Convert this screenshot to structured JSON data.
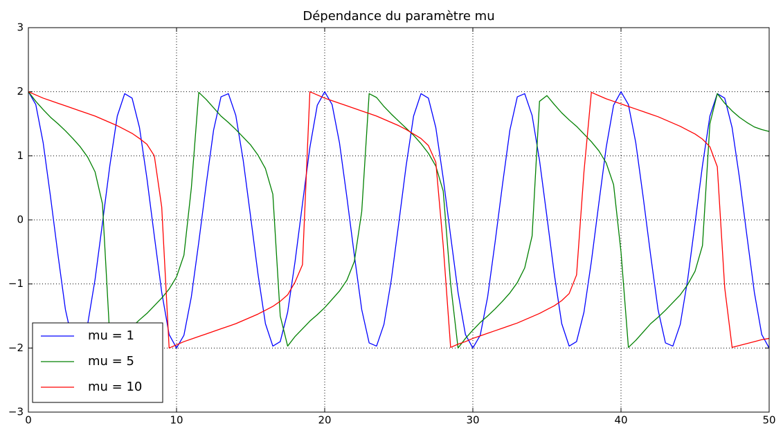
{
  "chart_data": {
    "type": "line",
    "title": "Dépendance du paramètre mu",
    "x": [
      0,
      0.5,
      1,
      1.5,
      2,
      2.5,
      3,
      3.5,
      4,
      4.5,
      5,
      5.5,
      6,
      6.5,
      7,
      7.5,
      8,
      8.5,
      9,
      9.5,
      10,
      10.5,
      11,
      11.5,
      12,
      12.5,
      13,
      13.5,
      14,
      14.5,
      15,
      15.5,
      16,
      16.5,
      17,
      17.5,
      18,
      18.5,
      19,
      19.5,
      20,
      20.5,
      21,
      21.5,
      22,
      22.5,
      23,
      23.5,
      24,
      24.5,
      25,
      25.5,
      26,
      26.5,
      27,
      27.5,
      28,
      28.5,
      29,
      29.5,
      30,
      30.5,
      31,
      31.5,
      32,
      32.5,
      33,
      33.5,
      34,
      34.5,
      35,
      35.5,
      36,
      36.5,
      37,
      37.5,
      38,
      38.5,
      39,
      39.5,
      40,
      40.5,
      41,
      41.5,
      42,
      42.5,
      43,
      43.5,
      44,
      44.5,
      45,
      45.5,
      46,
      46.5,
      47,
      47.5,
      48,
      48.5,
      49,
      49.5,
      50
    ],
    "series": [
      {
        "name": "mu = 1",
        "color": "#0000ff",
        "values": [
          2.0,
          1.8,
          1.2,
          0.35,
          -0.55,
          -1.4,
          -1.92,
          -1.97,
          -1.63,
          -0.93,
          -0.05,
          0.85,
          1.62,
          1.97,
          1.9,
          1.44,
          0.65,
          -0.25,
          -1.13,
          -1.79,
          -2.0,
          -1.8,
          -1.2,
          -0.35,
          0.55,
          1.4,
          1.92,
          1.97,
          1.63,
          0.93,
          0.05,
          -0.85,
          -1.62,
          -1.97,
          -1.9,
          -1.44,
          -0.65,
          0.25,
          1.13,
          1.79,
          2.0,
          1.8,
          1.2,
          0.35,
          -0.55,
          -1.4,
          -1.92,
          -1.97,
          -1.63,
          -0.93,
          -0.05,
          0.85,
          1.62,
          1.97,
          1.9,
          1.44,
          0.65,
          -0.25,
          -1.13,
          -1.79,
          -2.0,
          -1.8,
          -1.2,
          -0.35,
          0.55,
          1.4,
          1.92,
          1.97,
          1.63,
          0.93,
          0.05,
          -0.85,
          -1.62,
          -1.97,
          -1.9,
          -1.44,
          -0.65,
          0.25,
          1.13,
          1.79,
          2.0,
          1.8,
          1.2,
          0.35,
          -0.55,
          -1.4,
          -1.92,
          -1.97,
          -1.63,
          -0.93,
          -0.05,
          0.85,
          1.62,
          1.97,
          1.9,
          1.44,
          0.65,
          -0.25,
          -1.13,
          -1.79,
          -2.0
        ]
      },
      {
        "name": "mu = 5",
        "color": "#008000",
        "values": [
          2.0,
          1.85,
          1.72,
          1.6,
          1.5,
          1.39,
          1.27,
          1.14,
          0.98,
          0.75,
          0.25,
          -1.85,
          -1.94,
          -1.8,
          -1.67,
          -1.56,
          -1.46,
          -1.34,
          -1.22,
          -1.08,
          -0.89,
          -0.55,
          0.5,
          1.99,
          1.88,
          1.75,
          1.62,
          1.52,
          1.41,
          1.29,
          1.17,
          1.01,
          0.8,
          0.4,
          -1.5,
          -1.97,
          -1.82,
          -1.7,
          -1.58,
          -1.48,
          -1.37,
          -1.24,
          -1.11,
          -0.94,
          -0.65,
          0.13,
          1.97,
          1.91,
          1.77,
          1.65,
          1.54,
          1.43,
          1.32,
          1.19,
          1.04,
          0.84,
          0.45,
          -1.0,
          -2.0,
          -1.85,
          -1.72,
          -1.6,
          -1.5,
          -1.39,
          -1.27,
          -1.14,
          -0.98,
          -0.75,
          -0.25,
          1.85,
          1.94,
          1.8,
          1.67,
          1.56,
          1.46,
          1.34,
          1.22,
          1.08,
          0.89,
          0.55,
          -0.5,
          -1.99,
          -1.88,
          -1.75,
          -1.62,
          -1.52,
          -1.41,
          -1.29,
          -1.17,
          -1.01,
          -0.8,
          -0.4,
          1.5,
          1.97,
          1.82,
          1.7,
          1.6,
          1.52,
          1.45,
          1.41,
          1.38
        ]
      },
      {
        "name": "mu = 10",
        "color": "#ff0000",
        "values": [
          2.0,
          1.95,
          1.9,
          1.86,
          1.82,
          1.78,
          1.74,
          1.7,
          1.66,
          1.62,
          1.57,
          1.52,
          1.47,
          1.41,
          1.35,
          1.27,
          1.18,
          1.0,
          0.2,
          -2.0,
          -1.95,
          -1.9,
          -1.86,
          -1.82,
          -1.78,
          -1.74,
          -1.7,
          -1.66,
          -1.62,
          -1.57,
          -1.52,
          -1.47,
          -1.41,
          -1.35,
          -1.27,
          -1.17,
          -0.97,
          -0.7,
          2.0,
          1.95,
          1.9,
          1.86,
          1.82,
          1.78,
          1.74,
          1.7,
          1.66,
          1.62,
          1.57,
          1.52,
          1.47,
          1.41,
          1.34,
          1.27,
          1.16,
          0.9,
          -0.4,
          -1.99,
          -1.94,
          -1.9,
          -1.85,
          -1.81,
          -1.77,
          -1.73,
          -1.69,
          -1.65,
          -1.61,
          -1.56,
          -1.51,
          -1.46,
          -1.4,
          -1.34,
          -1.26,
          -1.15,
          -0.86,
          0.75,
          1.99,
          1.94,
          1.89,
          1.85,
          1.81,
          1.77,
          1.73,
          1.69,
          1.65,
          1.61,
          1.56,
          1.51,
          1.46,
          1.4,
          1.34,
          1.26,
          1.14,
          0.83,
          -1.06,
          -1.99,
          -1.96,
          -1.93,
          -1.9,
          -1.87,
          -1.85
        ]
      }
    ],
    "xlim": [
      0,
      50
    ],
    "xticks": [
      0,
      10,
      20,
      30,
      40,
      50
    ],
    "ylim": [
      -3,
      3
    ],
    "yticks": [
      {
        "value": -3,
        "label": "−3"
      },
      {
        "value": -2,
        "label": "−2"
      },
      {
        "value": -1,
        "label": "−1"
      },
      0,
      1,
      2,
      3
    ],
    "grid": true,
    "legend": "lower left"
  }
}
